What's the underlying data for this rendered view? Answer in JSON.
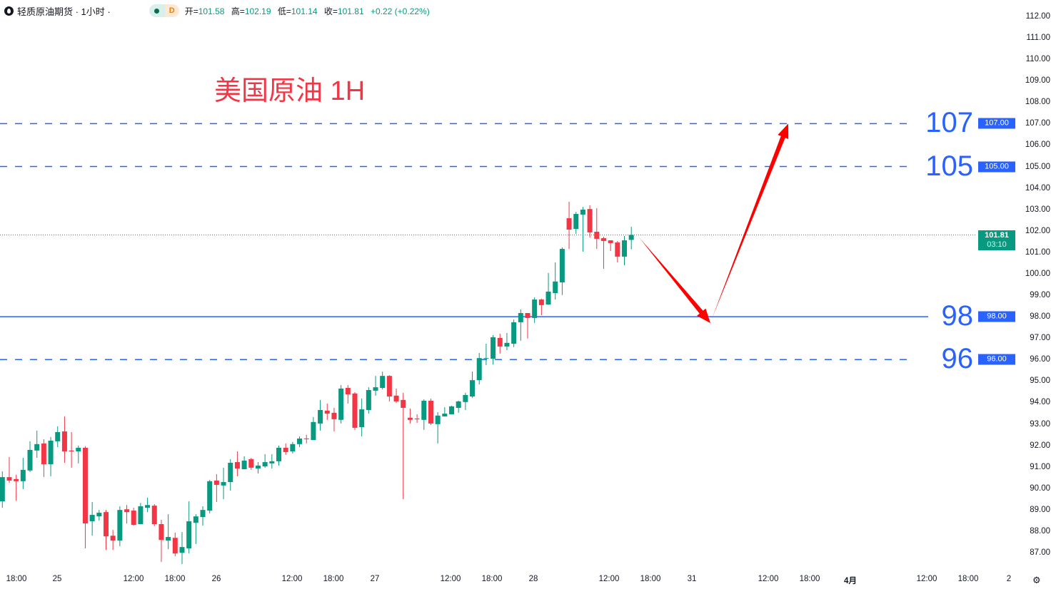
{
  "header": {
    "symbol": "轻质原油期货 · 1小时 ·",
    "badge_letter": "D",
    "open_label": "开=",
    "open": "101.58",
    "high_label": "高=",
    "high": "102.19",
    "low_label": "低=",
    "low": "101.14",
    "close_label": "收=",
    "close": "101.81",
    "change": "+0.22 (+0.22%)"
  },
  "colors": {
    "up": "#089981",
    "down": "#f23645",
    "level": "#2962ff",
    "annotation": "#ff0000"
  },
  "chart_data": {
    "type": "candlestick",
    "title": "美国原油 1H",
    "y_range": [
      86.5,
      112.5
    ],
    "y_ticks": [
      "112.00",
      "111.00",
      "110.00",
      "109.00",
      "108.00",
      "107.00",
      "106.00",
      "105.00",
      "104.00",
      "103.00",
      "102.00",
      "101.00",
      "100.00",
      "99.00",
      "98.00",
      "97.00",
      "96.00",
      "95.00",
      "94.00",
      "93.00",
      "92.00",
      "91.00",
      "90.00",
      "89.00",
      "88.00",
      "87.00"
    ],
    "x_ticks": [
      {
        "label": "18:00",
        "bold": false
      },
      {
        "label": "25",
        "bold": false
      },
      {
        "label": "12:00",
        "bold": false
      },
      {
        "label": "18:00",
        "bold": false
      },
      {
        "label": "26",
        "bold": false
      },
      {
        "label": "12:00",
        "bold": false
      },
      {
        "label": "18:00",
        "bold": false
      },
      {
        "label": "27",
        "bold": false
      },
      {
        "label": "12:00",
        "bold": false
      },
      {
        "label": "18:00",
        "bold": false
      },
      {
        "label": "28",
        "bold": false
      },
      {
        "label": "12:00",
        "bold": false
      },
      {
        "label": "18:00",
        "bold": false
      },
      {
        "label": "31",
        "bold": false
      },
      {
        "label": "12:00",
        "bold": false
      },
      {
        "label": "18:00",
        "bold": false
      },
      {
        "label": "4月",
        "bold": true
      },
      {
        "label": "12:00",
        "bold": false
      },
      {
        "label": "18:00",
        "bold": false
      },
      {
        "label": "2",
        "bold": false
      }
    ],
    "current_price": {
      "value": "101.81",
      "countdown": "03:10"
    },
    "levels": [
      {
        "price": 107,
        "label": "107",
        "axis_label": "107.00",
        "style": "dashed"
      },
      {
        "price": 105,
        "label": "105",
        "axis_label": "105.00",
        "style": "dashed"
      },
      {
        "price": 98,
        "label": "98",
        "axis_label": "98.00",
        "style": "solid"
      },
      {
        "price": 96,
        "label": "96",
        "axis_label": "96.00",
        "style": "dashed"
      }
    ],
    "arrows": [
      {
        "from_price": 101.7,
        "to_price": 97.7,
        "direction": "down"
      },
      {
        "from_price": 97.9,
        "to_price": 107.0,
        "direction": "up"
      }
    ],
    "ohlc": [
      [
        89.39,
        90.79,
        89.09,
        90.52
      ],
      [
        90.52,
        91.46,
        90.26,
        90.36
      ],
      [
        90.43,
        90.63,
        89.42,
        90.33
      ],
      [
        90.33,
        91.42,
        89.96,
        90.86
      ],
      [
        90.83,
        92.19,
        90.76,
        91.79
      ],
      [
        91.76,
        92.69,
        91.42,
        92.06
      ],
      [
        92.09,
        92.29,
        90.53,
        91.12
      ],
      [
        91.12,
        92.39,
        90.56,
        92.22
      ],
      [
        92.19,
        92.89,
        91.92,
        92.62
      ],
      [
        92.65,
        93.35,
        91.19,
        91.72
      ],
      [
        91.76,
        92.62,
        90.96,
        91.72
      ],
      [
        91.72,
        91.99,
        91.16,
        91.89
      ],
      [
        91.89,
        91.96,
        87.2,
        88.36
      ],
      [
        88.46,
        89.36,
        87.79,
        88.76
      ],
      [
        88.69,
        88.99,
        88.49,
        88.86
      ],
      [
        88.89,
        88.99,
        87.13,
        87.76
      ],
      [
        87.79,
        88.06,
        87.13,
        87.56
      ],
      [
        87.56,
        89.16,
        87.3,
        88.99
      ],
      [
        89.02,
        89.22,
        88.36,
        88.89
      ],
      [
        88.96,
        89.09,
        88.26,
        88.29
      ],
      [
        88.33,
        89.32,
        88.33,
        89.16
      ],
      [
        89.09,
        89.56,
        88.89,
        89.22
      ],
      [
        89.19,
        89.26,
        88.23,
        88.33
      ],
      [
        88.33,
        88.53,
        86.57,
        87.59
      ],
      [
        87.56,
        88.79,
        87.16,
        87.73
      ],
      [
        87.69,
        87.93,
        86.83,
        86.96
      ],
      [
        86.99,
        87.96,
        86.47,
        87.26
      ],
      [
        87.2,
        89.39,
        86.96,
        88.46
      ],
      [
        88.39,
        88.79,
        87.4,
        88.69
      ],
      [
        88.66,
        89.16,
        88.26,
        88.99
      ],
      [
        88.96,
        90.39,
        88.83,
        90.33
      ],
      [
        90.36,
        90.66,
        89.36,
        90.16
      ],
      [
        90.13,
        90.96,
        89.49,
        90.29
      ],
      [
        90.29,
        91.36,
        89.89,
        91.19
      ],
      [
        91.22,
        91.72,
        90.56,
        90.92
      ],
      [
        90.89,
        91.49,
        90.89,
        91.29
      ],
      [
        91.36,
        91.42,
        90.86,
        90.96
      ],
      [
        90.92,
        91.22,
        90.69,
        91.06
      ],
      [
        91.02,
        91.59,
        90.96,
        91.22
      ],
      [
        91.16,
        91.59,
        90.92,
        91.26
      ],
      [
        91.26,
        91.99,
        91.06,
        91.89
      ],
      [
        91.89,
        92.09,
        91.56,
        91.69
      ],
      [
        91.72,
        92.16,
        91.62,
        92.06
      ],
      [
        92.06,
        92.42,
        91.92,
        92.32
      ],
      [
        92.32,
        92.49,
        92.09,
        92.29
      ],
      [
        92.25,
        93.32,
        92.25,
        93.09
      ],
      [
        93.02,
        94.12,
        92.69,
        93.65
      ],
      [
        93.62,
        93.95,
        93.19,
        93.48
      ],
      [
        93.52,
        93.75,
        92.65,
        93.22
      ],
      [
        93.19,
        94.81,
        93.02,
        94.65
      ],
      [
        94.68,
        94.81,
        93.95,
        94.38
      ],
      [
        94.42,
        94.48,
        92.72,
        92.82
      ],
      [
        92.85,
        94.18,
        92.42,
        93.68
      ],
      [
        93.65,
        94.71,
        93.48,
        94.58
      ],
      [
        94.55,
        95.24,
        94.32,
        94.71
      ],
      [
        94.68,
        95.44,
        94.61,
        95.24
      ],
      [
        95.24,
        95.27,
        94.05,
        94.28
      ],
      [
        94.32,
        94.65,
        93.98,
        94.05
      ],
      [
        94.12,
        94.45,
        89.49,
        93.75
      ],
      [
        93.29,
        93.72,
        93.02,
        93.19
      ],
      [
        93.25,
        93.45,
        93.05,
        93.22
      ],
      [
        93.19,
        94.15,
        92.72,
        94.08
      ],
      [
        94.08,
        94.18,
        92.95,
        93.02
      ],
      [
        92.99,
        93.55,
        92.09,
        93.39
      ],
      [
        93.35,
        93.78,
        93.35,
        93.48
      ],
      [
        93.45,
        93.85,
        93.45,
        93.82
      ],
      [
        93.75,
        94.08,
        93.52,
        94.05
      ],
      [
        94.02,
        94.45,
        93.65,
        94.35
      ],
      [
        94.28,
        95.44,
        94.22,
        95.04
      ],
      [
        95.04,
        96.31,
        94.84,
        96.07
      ],
      [
        96.04,
        96.74,
        95.74,
        96.07
      ],
      [
        96.04,
        97.14,
        95.77,
        97.04
      ],
      [
        97.01,
        97.21,
        96.28,
        96.61
      ],
      [
        96.61,
        97.24,
        96.44,
        96.78
      ],
      [
        96.74,
        97.87,
        96.58,
        97.74
      ],
      [
        97.74,
        98.34,
        96.88,
        98.17
      ],
      [
        98.17,
        98.17,
        96.98,
        97.94
      ],
      [
        97.94,
        98.9,
        97.71,
        98.8
      ],
      [
        98.8,
        98.84,
        98.07,
        98.54
      ],
      [
        98.57,
        100.04,
        98.54,
        99.17
      ],
      [
        99.1,
        100.53,
        98.8,
        99.64
      ],
      [
        99.6,
        101.23,
        99.01,
        101.16
      ],
      [
        102.59,
        103.36,
        101.16,
        102.06
      ],
      [
        102.09,
        102.89,
        101.86,
        102.79
      ],
      [
        102.76,
        103.12,
        101.03,
        102.99
      ],
      [
        103.02,
        103.19,
        101.69,
        101.93
      ],
      [
        101.96,
        103.06,
        101.16,
        101.63
      ],
      [
        101.66,
        101.73,
        100.23,
        101.53
      ],
      [
        101.56,
        101.56,
        101.06,
        101.43
      ],
      [
        101.46,
        101.53,
        100.53,
        100.8
      ],
      [
        100.8,
        101.76,
        100.4,
        101.56
      ],
      [
        101.58,
        102.19,
        101.14,
        101.81
      ]
    ]
  }
}
